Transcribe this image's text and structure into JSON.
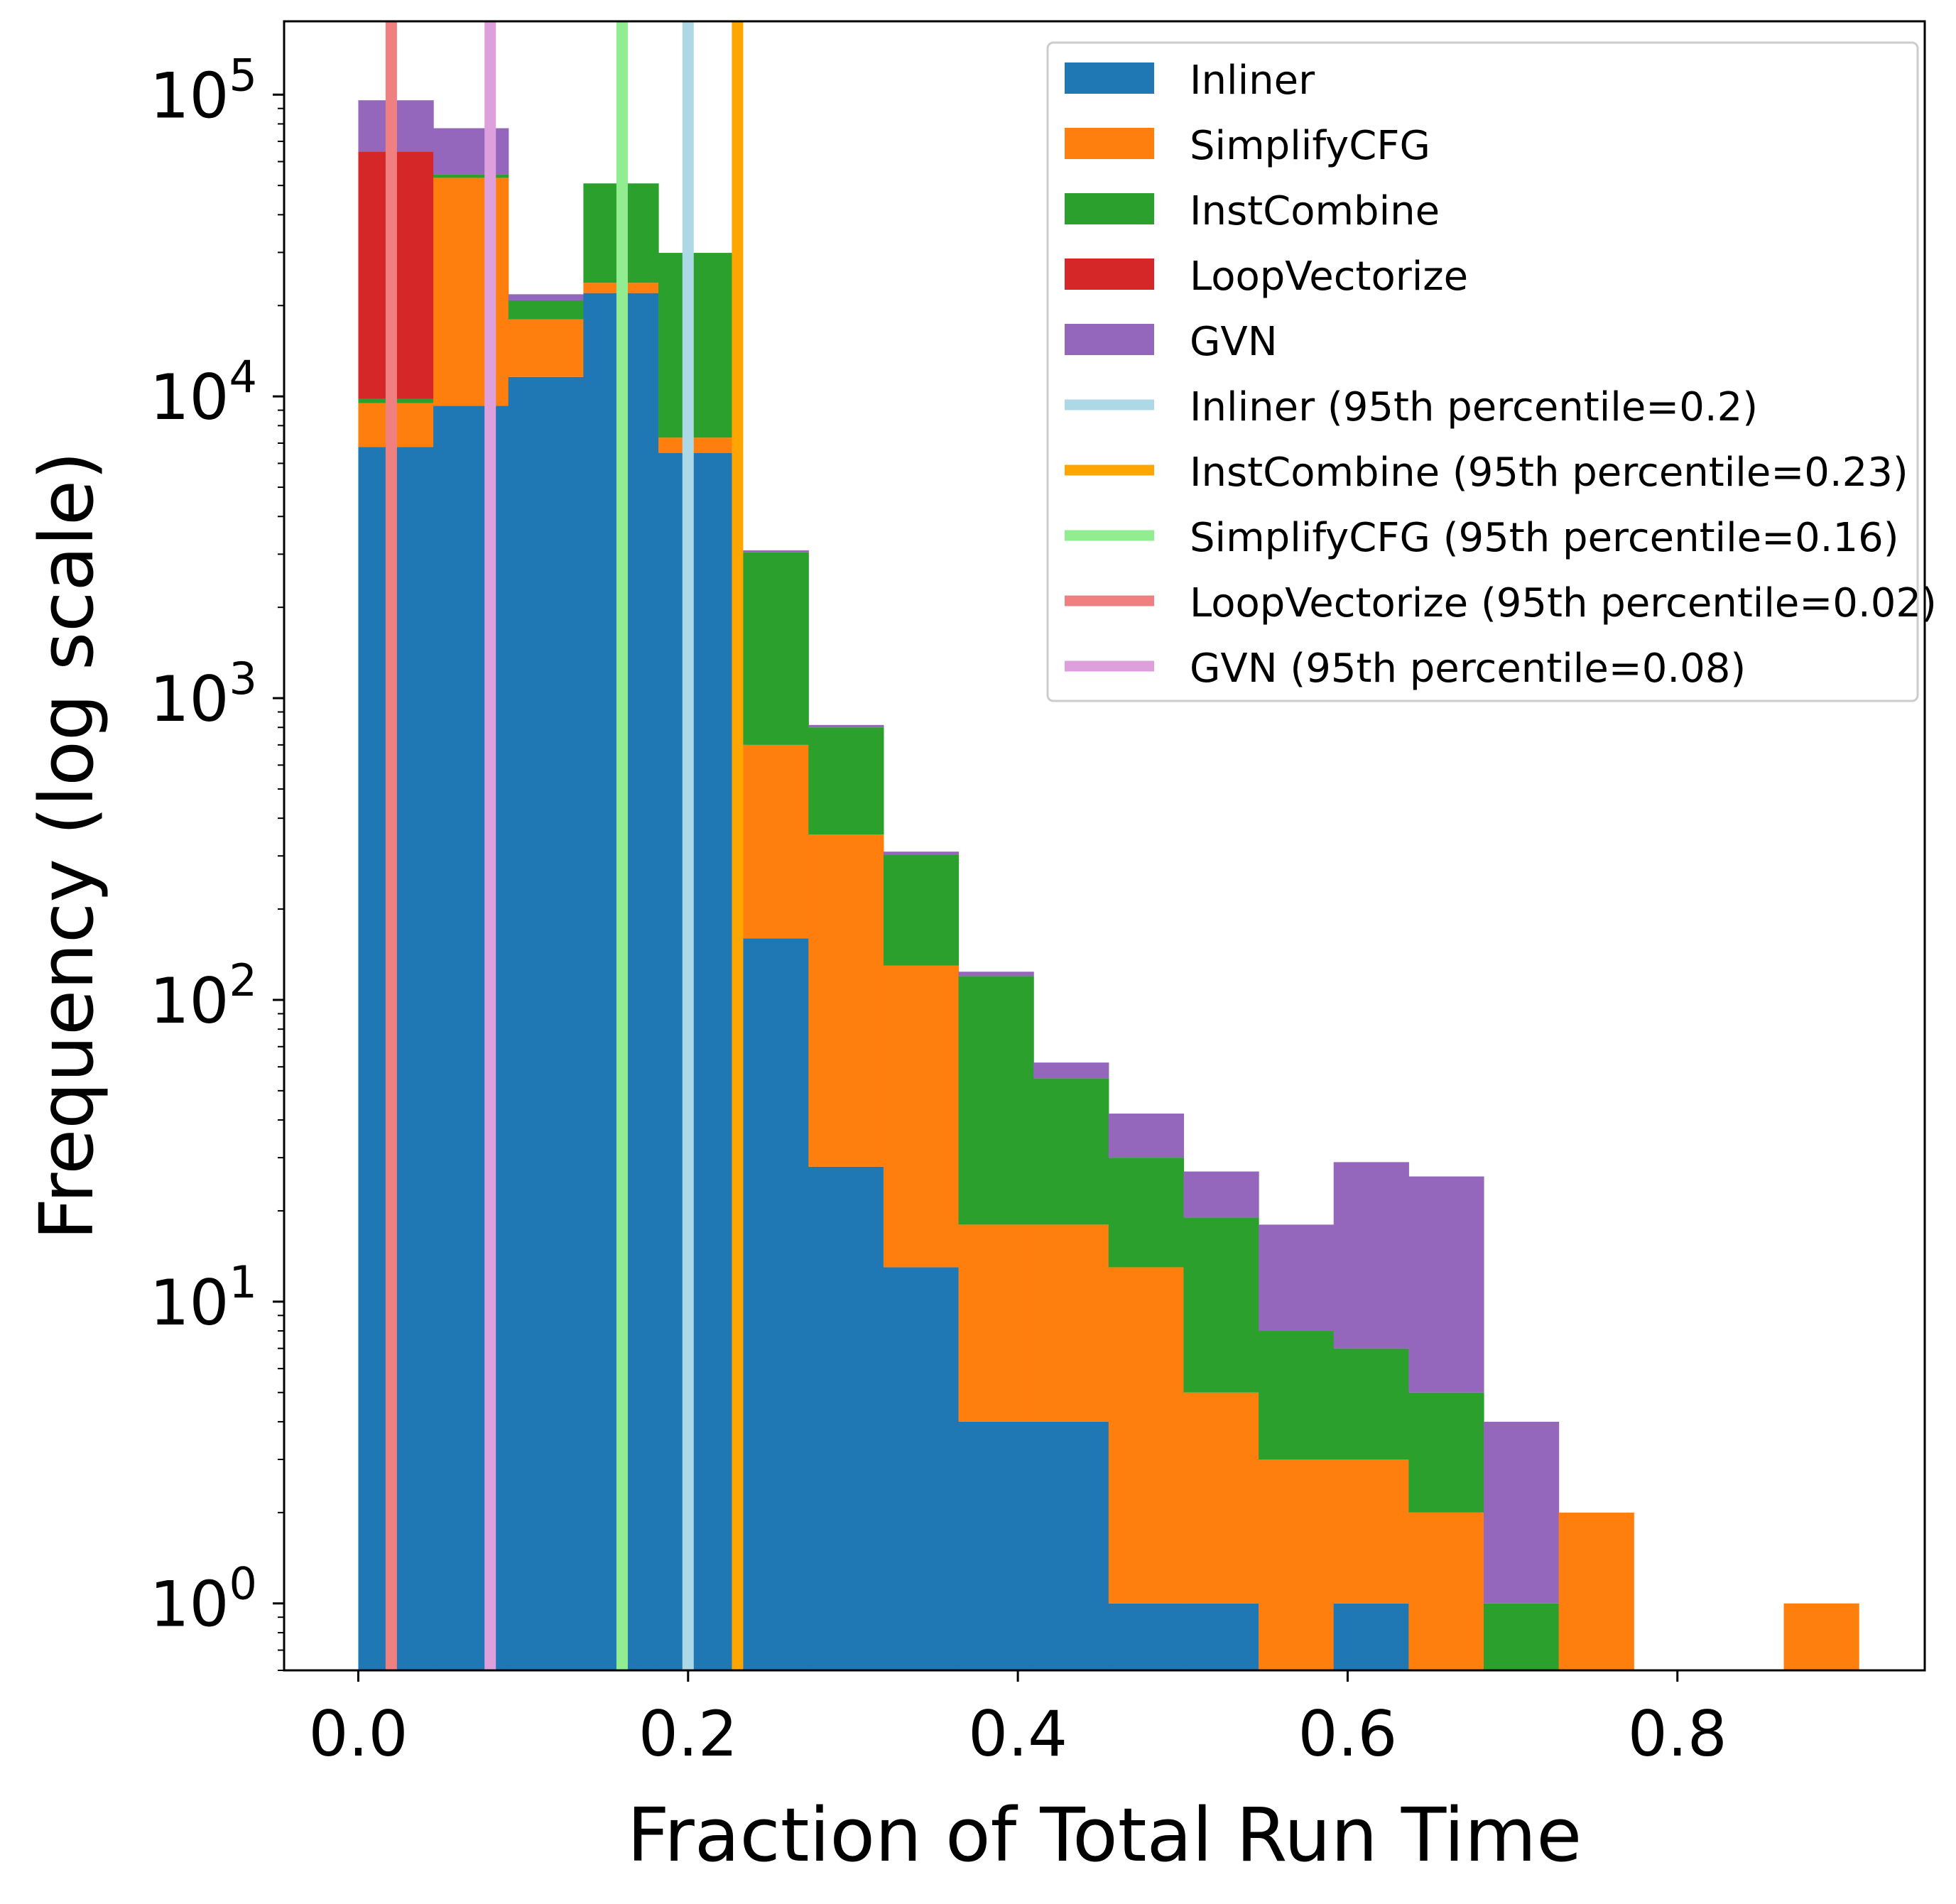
{
  "chart_data": {
    "type": "bar",
    "stacked": true,
    "xlabel": "Fraction of Total Run Time",
    "ylabel": "Frequency (log scale)",
    "y_scale": "log",
    "xlim": [
      -0.045,
      0.95
    ],
    "ylim": [
      0.6,
      175000
    ],
    "x_ticks": [
      0.0,
      0.2,
      0.4,
      0.6,
      0.8
    ],
    "x_tick_labels": [
      "0.0",
      "0.2",
      "0.4",
      "0.6",
      "0.8"
    ],
    "y_ticks": [
      1,
      10,
      100,
      1000,
      10000,
      100000
    ],
    "y_tick_labels": [
      {
        "base": "10",
        "exp": "0"
      },
      {
        "base": "10",
        "exp": "1"
      },
      {
        "base": "10",
        "exp": "2"
      },
      {
        "base": "10",
        "exp": "3"
      },
      {
        "base": "10",
        "exp": "4"
      },
      {
        "base": "10",
        "exp": "5"
      }
    ],
    "grid": false,
    "legend_position": "upper-right",
    "bin_edges": [
      0.0,
      0.0455,
      0.091,
      0.1365,
      0.182,
      0.2275,
      0.273,
      0.3185,
      0.364,
      0.4095,
      0.455,
      0.5005,
      0.546,
      0.5915,
      0.637,
      0.6825,
      0.728,
      0.7735,
      0.819,
      0.8645,
      0.91
    ],
    "series": [
      {
        "name": "Inliner",
        "color": "#1f77b4",
        "values": [
          6800,
          9300,
          11600,
          22000,
          6500,
          160,
          28,
          13,
          4,
          4,
          1,
          1,
          0,
          1,
          0,
          0,
          0,
          0,
          0,
          0
        ]
      },
      {
        "name": "SimplifyCFG",
        "color": "#ff7f0e",
        "values": [
          2700,
          43700,
          6400,
          1800,
          800,
          540,
          325,
          117,
          14,
          14,
          12,
          4,
          3,
          2,
          2,
          0,
          2,
          0,
          0,
          1
        ]
      },
      {
        "name": "InstCombine",
        "color": "#2ca02c",
        "values": [
          300,
          1400,
          2800,
          27000,
          22600,
          2340,
          447,
          172,
          102,
          37,
          17,
          14,
          5,
          4,
          3,
          1,
          0,
          0,
          0,
          0
        ]
      },
      {
        "name": "LoopVectorize",
        "color": "#d62728",
        "values": [
          55000,
          0,
          0,
          0,
          0,
          0,
          0,
          0,
          0,
          0,
          0,
          0,
          0,
          0,
          0,
          0,
          0,
          0,
          0,
          0
        ]
      },
      {
        "name": "GVN",
        "color": "#9467bd",
        "values": [
          31000,
          23000,
          1000,
          0,
          0,
          50,
          15,
          8,
          4,
          7,
          12,
          8,
          10,
          22,
          21,
          3,
          0,
          0,
          0,
          0
        ]
      }
    ],
    "percentile_lines": [
      {
        "name": "Inliner (95th percentile=0.2)",
        "x": 0.2,
        "color": "#add8e6"
      },
      {
        "name": "InstCombine (95th percentile=0.23)",
        "x": 0.23,
        "color": "#ffa500"
      },
      {
        "name": "SimplifyCFG (95th percentile=0.16)",
        "x": 0.16,
        "color": "#90ee90"
      },
      {
        "name": "LoopVectorize (95th percentile=0.02)",
        "x": 0.02,
        "color": "#f08080"
      },
      {
        "name": "GVN (95th percentile=0.08)",
        "x": 0.08,
        "color": "#dda0dd"
      }
    ]
  }
}
